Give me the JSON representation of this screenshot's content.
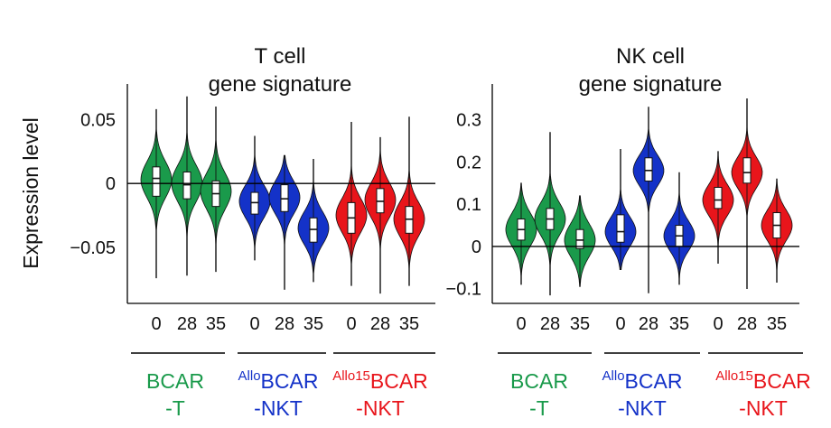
{
  "ylabel": "Expression level",
  "chart_data": [
    {
      "type": "violin",
      "title_lines": [
        "T cell",
        "gene signature"
      ],
      "yticks": [
        {
          "label": "0.05",
          "value": 0.05
        },
        {
          "label": "0",
          "value": 0
        },
        {
          "label": "−0.05",
          "value": -0.05
        }
      ],
      "ylim": [
        -0.094,
        0.078
      ],
      "groups": [
        {
          "sup": "",
          "name": "BCAR",
          "suffix": "-T",
          "color": "#1a9a4b",
          "violins": [
            {
              "label": "0",
              "min": -0.074,
              "max": 0.058,
              "q1": -0.01,
              "median": 0.004,
              "q3": 0.013,
              "width": 0.02,
              "dens_peak": 0.003
            },
            {
              "label": "28",
              "min": -0.072,
              "max": 0.068,
              "q1": -0.012,
              "median": -0.001,
              "q3": 0.009,
              "width": 0.02,
              "dens_peak": 0.0
            },
            {
              "label": "35",
              "min": -0.069,
              "max": 0.06,
              "q1": -0.018,
              "median": -0.008,
              "q3": 0.002,
              "width": 0.02,
              "dens_peak": -0.006
            }
          ]
        },
        {
          "sup": "Allo",
          "name": "BCAR",
          "suffix": "-NKT",
          "color": "#1432c8",
          "violins": [
            {
              "label": "0",
              "min": -0.06,
              "max": 0.037,
              "q1": -0.024,
              "median": -0.015,
              "q3": -0.007,
              "width": 0.018,
              "dens_peak": -0.014
            },
            {
              "label": "28",
              "min": -0.083,
              "max": 0.022,
              "q1": -0.022,
              "median": -0.012,
              "q3": -0.001,
              "width": 0.018,
              "dens_peak": -0.011
            },
            {
              "label": "35",
              "min": -0.077,
              "max": 0.019,
              "q1": -0.046,
              "median": -0.036,
              "q3": -0.027,
              "width": 0.018,
              "dens_peak": -0.035
            }
          ]
        },
        {
          "sup": "Allo15",
          "name": "BCAR",
          "suffix": "-NKT",
          "color": "#e8151b",
          "violins": [
            {
              "label": "0",
              "min": -0.08,
              "max": 0.048,
              "q1": -0.039,
              "median": -0.027,
              "q3": -0.015,
              "width": 0.019,
              "dens_peak": -0.025
            },
            {
              "label": "28",
              "min": -0.086,
              "max": 0.036,
              "q1": -0.023,
              "median": -0.014,
              "q3": -0.004,
              "width": 0.019,
              "dens_peak": -0.013
            },
            {
              "label": "35",
              "min": -0.08,
              "max": 0.052,
              "q1": -0.039,
              "median": -0.028,
              "q3": -0.018,
              "width": 0.019,
              "dens_peak": -0.028
            }
          ]
        }
      ]
    },
    {
      "type": "violin",
      "title_lines": [
        "NK cell",
        "gene signature"
      ],
      "yticks": [
        {
          "label": "0.3",
          "value": 0.3
        },
        {
          "label": "0.2",
          "value": 0.2
        },
        {
          "label": "0.1",
          "value": 0.1
        },
        {
          "label": "0",
          "value": 0
        },
        {
          "label": "−0.1",
          "value": -0.1
        }
      ],
      "ylim": [
        -0.135,
        0.385
      ],
      "groups": [
        {
          "sup": "",
          "name": "BCAR",
          "suffix": "-T",
          "color": "#1a9a4b",
          "violins": [
            {
              "label": "0",
              "min": -0.09,
              "max": 0.15,
              "q1": 0.015,
              "median": 0.04,
              "q3": 0.065,
              "width": 0.055,
              "dens_peak": 0.04
            },
            {
              "label": "28",
              "min": -0.115,
              "max": 0.27,
              "q1": 0.04,
              "median": 0.065,
              "q3": 0.09,
              "width": 0.055,
              "dens_peak": 0.065
            },
            {
              "label": "35",
              "min": -0.095,
              "max": 0.12,
              "q1": -0.005,
              "median": 0.015,
              "q3": 0.04,
              "width": 0.055,
              "dens_peak": 0.015
            }
          ]
        },
        {
          "sup": "Allo",
          "name": "BCAR",
          "suffix": "-NKT",
          "color": "#1432c8",
          "violins": [
            {
              "label": "0",
              "min": -0.055,
              "max": 0.23,
              "q1": 0.01,
              "median": 0.035,
              "q3": 0.075,
              "width": 0.05,
              "dens_peak": 0.035
            },
            {
              "label": "28",
              "min": -0.11,
              "max": 0.33,
              "q1": 0.155,
              "median": 0.18,
              "q3": 0.21,
              "width": 0.05,
              "dens_peak": 0.18
            },
            {
              "label": "35",
              "min": -0.09,
              "max": 0.175,
              "q1": 0.0,
              "median": 0.025,
              "q3": 0.05,
              "width": 0.05,
              "dens_peak": 0.025
            }
          ]
        },
        {
          "sup": "Allo15",
          "name": "BCAR",
          "suffix": "-NKT",
          "color": "#e8151b",
          "violins": [
            {
              "label": "0",
              "min": -0.04,
              "max": 0.225,
              "q1": 0.09,
              "median": 0.11,
              "q3": 0.14,
              "width": 0.052,
              "dens_peak": 0.11
            },
            {
              "label": "28",
              "min": -0.1,
              "max": 0.35,
              "q1": 0.15,
              "median": 0.175,
              "q3": 0.21,
              "width": 0.052,
              "dens_peak": 0.175
            },
            {
              "label": "35",
              "min": -0.085,
              "max": 0.16,
              "q1": 0.02,
              "median": 0.05,
              "q3": 0.08,
              "width": 0.052,
              "dens_peak": 0.05
            }
          ]
        }
      ]
    }
  ]
}
